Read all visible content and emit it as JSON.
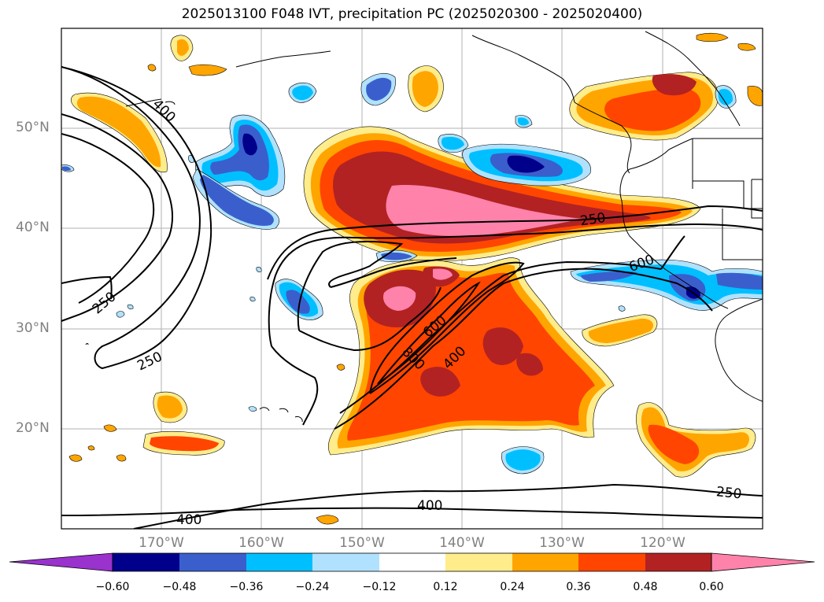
{
  "title": "2025013100 F048 IVT, precipitation PC (2025020300 - 2025020400)",
  "lat_labels": [
    "50°N",
    "40°N",
    "30°N",
    "20°N"
  ],
  "lon_labels": [
    "170°W",
    "160°W",
    "150°W",
    "140°W",
    "130°W",
    "120°W"
  ],
  "contour_labels": [
    "400",
    "250",
    "250",
    "400",
    "400",
    "250",
    "250",
    "600",
    "600",
    "800",
    "400"
  ],
  "colorbar": {
    "ticks": [
      "−0.60",
      "−0.48",
      "−0.36",
      "−0.24",
      "−0.12",
      "0.12",
      "0.24",
      "0.36",
      "0.48",
      "0.60"
    ],
    "colors": [
      "#9a32cd",
      "#00008b",
      "#3a5fcd",
      "#00bfff",
      "#b0e2ff",
      "#ffffff",
      "#ffec8b",
      "#ffa500",
      "#ff4500",
      "#b22222",
      "#ff82ab"
    ]
  }
}
